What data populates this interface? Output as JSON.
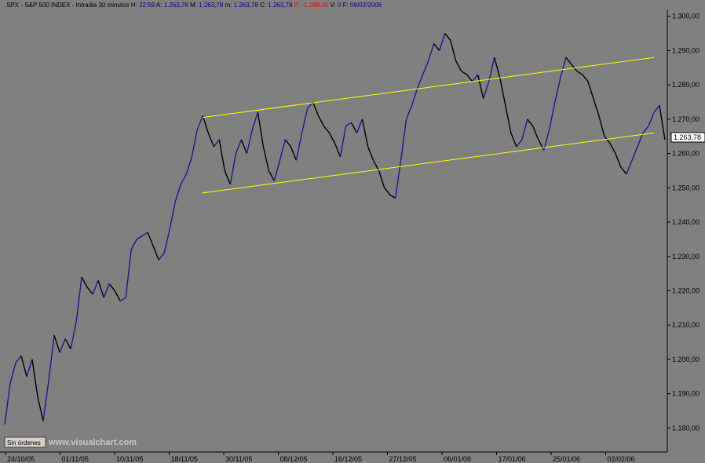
{
  "header": {
    "symbol": ".SPX",
    "name": "S&P 500 INDEX",
    "timeframe": "Intradia 30 minutos",
    "h_label": "H:",
    "h_value": "22:59",
    "a_label": "A:",
    "a_value": "1.263,78",
    "m_label": "M:",
    "m_value": "1.263,78",
    "min_label": "m:",
    "min_value": "1.263,78",
    "c_label": "C:",
    "c_value": "1.263,78",
    "p_label": "P:",
    "p_value": "-1.268,05",
    "v_label": "V:",
    "v_value": "0",
    "f_label": "F:",
    "f_value": "09/02/2006"
  },
  "orders_button": {
    "label": "Sin órdenes"
  },
  "watermark": "www.visualchart.com",
  "colors": {
    "background": "#808080",
    "up_trend": "#1a1a8c",
    "down_trend": "#000000",
    "channel": "#ffff00",
    "header_blue": "#00008b",
    "header_red": "#e00000"
  },
  "chart_data": {
    "type": "line",
    "title": "",
    "xlabel": "",
    "ylabel": "",
    "ylim": [
      1173,
      1302
    ],
    "y_ticks": [
      1180,
      1190,
      1200,
      1210,
      1220,
      1230,
      1240,
      1250,
      1260,
      1270,
      1280,
      1290,
      1300
    ],
    "y_tick_labels": [
      "1.180,00",
      "1.190,00",
      "1.200,00",
      "1.210,00",
      "1.220,00",
      "1.230,00",
      "1.240,00",
      "1.250,00",
      "1.260,00",
      "1.270,00",
      "1.280,00",
      "1.290,00",
      "1.300,00"
    ],
    "x_tick_labels": [
      "24/10/05",
      "01/11/05",
      "10/11/05",
      "18/11/05",
      "30/11/05",
      "08/12/05",
      "16/12/05",
      "27/12/05",
      "06/01/06",
      "17/01/06",
      "25/01/06",
      "02/02/06"
    ],
    "last_value": "1.263,78",
    "grid": false,
    "series": [
      {
        "values": [
          1181,
          1193,
          1199,
          1201,
          1195,
          1200,
          1189,
          1182,
          1194,
          1207,
          1202,
          1206,
          1203,
          1211,
          1224,
          1221,
          1219,
          1223,
          1218,
          1222,
          1220,
          1217,
          1218,
          1232,
          1235,
          1236,
          1237,
          1233,
          1229,
          1231,
          1238,
          1246,
          1251,
          1254,
          1259,
          1267,
          1271,
          1266,
          1262,
          1264,
          1255,
          1251,
          1260,
          1264,
          1260,
          1267,
          1272,
          1262,
          1255,
          1252,
          1258,
          1264,
          1262,
          1258,
          1266,
          1273,
          1275,
          1271,
          1268,
          1266,
          1263,
          1259,
          1268,
          1269,
          1266,
          1270,
          1262,
          1258,
          1255,
          1250,
          1248,
          1247,
          1258,
          1270,
          1274,
          1279,
          1283,
          1287,
          1292,
          1290,
          1295,
          1293,
          1287,
          1284,
          1283,
          1281,
          1283,
          1276,
          1281,
          1288,
          1282,
          1274,
          1266,
          1262,
          1264,
          1270,
          1268,
          1264,
          1261,
          1267,
          1275,
          1282,
          1288,
          1286,
          1284,
          1283,
          1281,
          1276,
          1271,
          1265,
          1263,
          1260,
          1256,
          1254,
          1258,
          1262,
          1266,
          1268,
          1272,
          1274,
          1264
        ]
      }
    ],
    "channel_lines": [
      {
        "x": [
          0.3,
          0.98
        ],
        "y": [
          1270.5,
          1288
        ]
      },
      {
        "x": [
          0.3,
          0.98
        ],
        "y": [
          1248.5,
          1266
        ]
      }
    ]
  }
}
